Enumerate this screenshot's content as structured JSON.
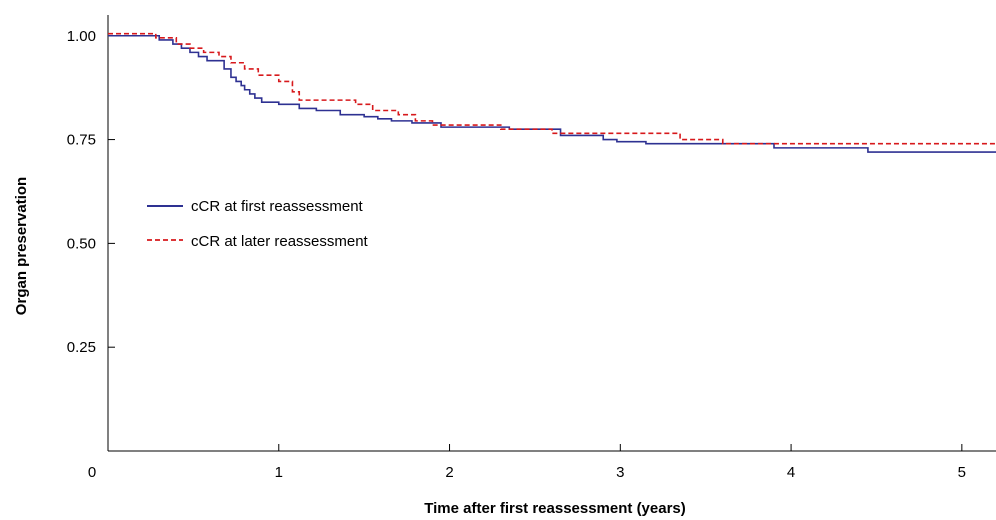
{
  "chart_data": {
    "type": "line",
    "step": true,
    "xlabel": "Time after first reassessment (years)",
    "ylabel": "Organ preservation",
    "xlim": [
      0,
      5.2
    ],
    "ylim": [
      0,
      1.05
    ],
    "x_ticks": [
      0,
      1,
      2,
      3,
      4,
      5
    ],
    "x_tick_labels": [
      "0",
      "1",
      "2",
      "3",
      "4",
      "5"
    ],
    "y_ticks": [
      0.25,
      0.5,
      0.75,
      1.0
    ],
    "y_tick_labels": [
      "0.25",
      "0.50",
      "0.75",
      "1.00"
    ],
    "grid": false,
    "legend_position": "middle-left",
    "series": [
      {
        "name": "cCR at first reassessment",
        "color": "#2e3192",
        "dash": "solid",
        "x": [
          0,
          0.3,
          0.38,
          0.43,
          0.48,
          0.53,
          0.58,
          0.68,
          0.72,
          0.75,
          0.78,
          0.8,
          0.83,
          0.86,
          0.9,
          1.0,
          1.12,
          1.22,
          1.36,
          1.5,
          1.58,
          1.66,
          1.78,
          1.95,
          2.35,
          2.65,
          2.9,
          2.98,
          3.15,
          3.9,
          4.45,
          5.2
        ],
        "y": [
          1.0,
          0.99,
          0.98,
          0.97,
          0.96,
          0.95,
          0.94,
          0.92,
          0.9,
          0.89,
          0.88,
          0.87,
          0.86,
          0.85,
          0.84,
          0.835,
          0.825,
          0.82,
          0.81,
          0.805,
          0.8,
          0.795,
          0.79,
          0.78,
          0.775,
          0.76,
          0.75,
          0.745,
          0.74,
          0.73,
          0.72,
          0.72
        ]
      },
      {
        "name": "cCR at later reassessment",
        "color": "#d7191c",
        "dash": "dashed",
        "x": [
          0,
          0.28,
          0.4,
          0.48,
          0.56,
          0.65,
          0.72,
          0.8,
          0.88,
          1.0,
          1.08,
          1.12,
          1.45,
          1.55,
          1.7,
          1.8,
          1.9,
          2.3,
          2.6,
          3.35,
          3.6,
          5.2
        ],
        "y": [
          1.005,
          0.995,
          0.98,
          0.97,
          0.96,
          0.95,
          0.935,
          0.92,
          0.905,
          0.89,
          0.865,
          0.845,
          0.835,
          0.82,
          0.81,
          0.795,
          0.785,
          0.775,
          0.765,
          0.75,
          0.74,
          0.74
        ]
      }
    ]
  }
}
